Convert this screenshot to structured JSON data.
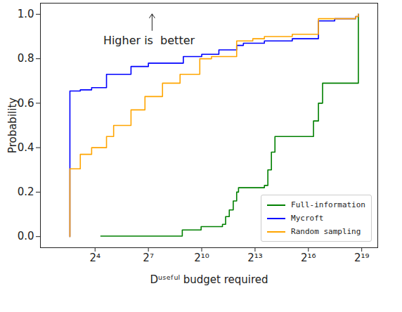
{
  "chart_data": {
    "type": "line",
    "x_label": "Dᵘˢᵉᶠᵘˡ budget required",
    "y_label": "Probability",
    "log": "x",
    "grid": false,
    "legend": "lower right",
    "line_style": "step",
    "xlim": [
      1.9,
      980000
    ],
    "ylim": [
      -0.05,
      1.05
    ],
    "xticks": [
      {
        "value": 16,
        "label": "2⁴"
      },
      {
        "value": 128,
        "label": "2⁷"
      },
      {
        "value": 1024,
        "label": "2¹⁰"
      },
      {
        "value": 8192,
        "label": "2¹³"
      },
      {
        "value": 65536,
        "label": "2¹⁶"
      },
      {
        "value": 524288,
        "label": "2¹⁹"
      }
    ],
    "yticks": [
      {
        "value": 0,
        "label": "0.0"
      },
      {
        "value": 0.2,
        "label": "0.2"
      },
      {
        "value": 0.4,
        "label": "0.4"
      },
      {
        "value": 0.6,
        "label": "0.6"
      },
      {
        "value": 0.8,
        "label": "0.8"
      },
      {
        "value": 1,
        "label": "1.0"
      }
    ],
    "annotations": [
      {
        "text": "Higher is  better",
        "x": 22,
        "y": 0.88
      }
    ],
    "series": [
      {
        "name": "Full-information",
        "color": "#008000",
        "x": [
          20,
          480,
          1000,
          2300,
          2600,
          3000,
          3500,
          4000,
          4300,
          11800,
          13500,
          15500,
          17800,
          80000,
          97000,
          114000,
          460000
        ],
        "values": [
          0.002,
          0.03,
          0.045,
          0.055,
          0.09,
          0.12,
          0.16,
          0.2,
          0.22,
          0.23,
          0.3,
          0.38,
          0.45,
          0.52,
          0.6,
          0.69,
          1.0
        ]
      },
      {
        "name": "Mycroft",
        "color": "#0000ff",
        "x": [
          6,
          6,
          6,
          9,
          14,
          25,
          65,
          128,
          500,
          1024,
          2000,
          4000,
          5200,
          11800,
          35000,
          97000,
          183000,
          415000,
          460000
        ],
        "values": [
          0,
          0.31,
          0.655,
          0.66,
          0.67,
          0.73,
          0.765,
          0.78,
          0.81,
          0.82,
          0.84,
          0.86,
          0.87,
          0.88,
          0.89,
          0.97,
          0.98,
          0.99,
          1.0
        ]
      },
      {
        "name": "Random sampling",
        "color": "#ffa500",
        "x": [
          6,
          6,
          9,
          14,
          25,
          33,
          65,
          112,
          222,
          440,
          950,
          1500,
          4000,
          7500,
          11800,
          35000,
          97000,
          415000,
          460000
        ],
        "values": [
          0,
          0.305,
          0.37,
          0.4,
          0.45,
          0.5,
          0.57,
          0.63,
          0.69,
          0.73,
          0.8,
          0.81,
          0.88,
          0.89,
          0.9,
          0.91,
          0.98,
          0.99,
          1.0
        ]
      }
    ]
  }
}
